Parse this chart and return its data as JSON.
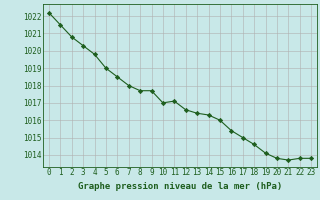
{
  "x": [
    0,
    1,
    2,
    3,
    4,
    5,
    6,
    7,
    8,
    9,
    10,
    11,
    12,
    13,
    14,
    15,
    16,
    17,
    18,
    19,
    20,
    21,
    22,
    23
  ],
  "y": [
    1022.2,
    1021.5,
    1020.8,
    1020.3,
    1019.8,
    1019.0,
    1018.5,
    1018.0,
    1017.7,
    1017.7,
    1017.0,
    1017.1,
    1016.6,
    1016.4,
    1016.3,
    1016.0,
    1015.4,
    1015.0,
    1014.6,
    1014.1,
    1013.8,
    1013.7,
    1013.8,
    1013.8
  ],
  "line_color": "#1e5e1e",
  "marker": "D",
  "marker_size": 2.2,
  "bg_color": "#c8e8e8",
  "grid_color": "#b0b0b0",
  "tick_label_color": "#1e5e1e",
  "xlabel": "Graphe pression niveau de la mer (hPa)",
  "xlabel_color": "#1e5e1e",
  "xlabel_fontsize": 6.5,
  "ylabel_ticks": [
    1014,
    1015,
    1016,
    1017,
    1018,
    1019,
    1020,
    1021,
    1022
  ],
  "ylim": [
    1013.3,
    1022.7
  ],
  "xlim": [
    -0.5,
    23.5
  ],
  "tick_fontsize": 5.5
}
